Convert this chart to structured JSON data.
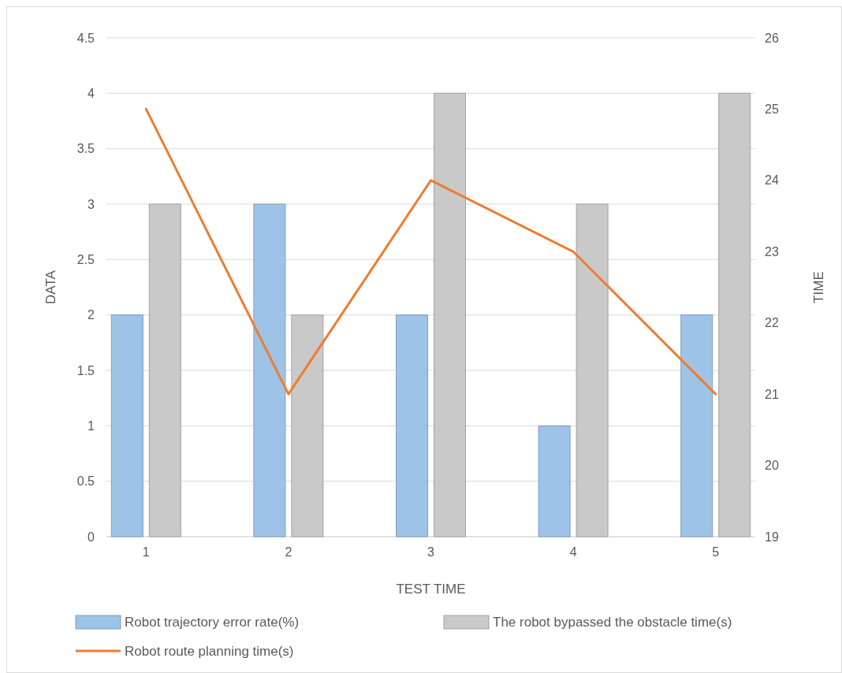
{
  "chart_data": {
    "type": "bar",
    "xlabel": "TEST TIME",
    "ylabel": "DATA",
    "y2label": "TIME",
    "categories": [
      "1",
      "2",
      "3",
      "4",
      "5"
    ],
    "series": [
      {
        "name": "Robot trajectory error rate(%)",
        "color": "#9dc3e6",
        "values": [
          2,
          3,
          2,
          1,
          2
        ]
      },
      {
        "name": "The robot bypassed the obstacle time(s)",
        "color": "#c9c9c9",
        "values": [
          3,
          2,
          4,
          3,
          4
        ]
      },
      {
        "name": "Robot route planning time(s)",
        "type": "line",
        "axis": "y2",
        "color": "#ed7d31",
        "values": [
          25,
          21,
          24,
          23,
          21
        ]
      }
    ],
    "ylim": [
      0,
      4.5
    ],
    "yticks": [
      0,
      0.5,
      1,
      1.5,
      2,
      2.5,
      3,
      3.5,
      4,
      4.5
    ],
    "y2lim": [
      19,
      26
    ],
    "y2ticks": [
      19,
      20,
      21,
      22,
      23,
      24,
      25,
      26
    ],
    "grid": "y",
    "legend": "bottom"
  }
}
